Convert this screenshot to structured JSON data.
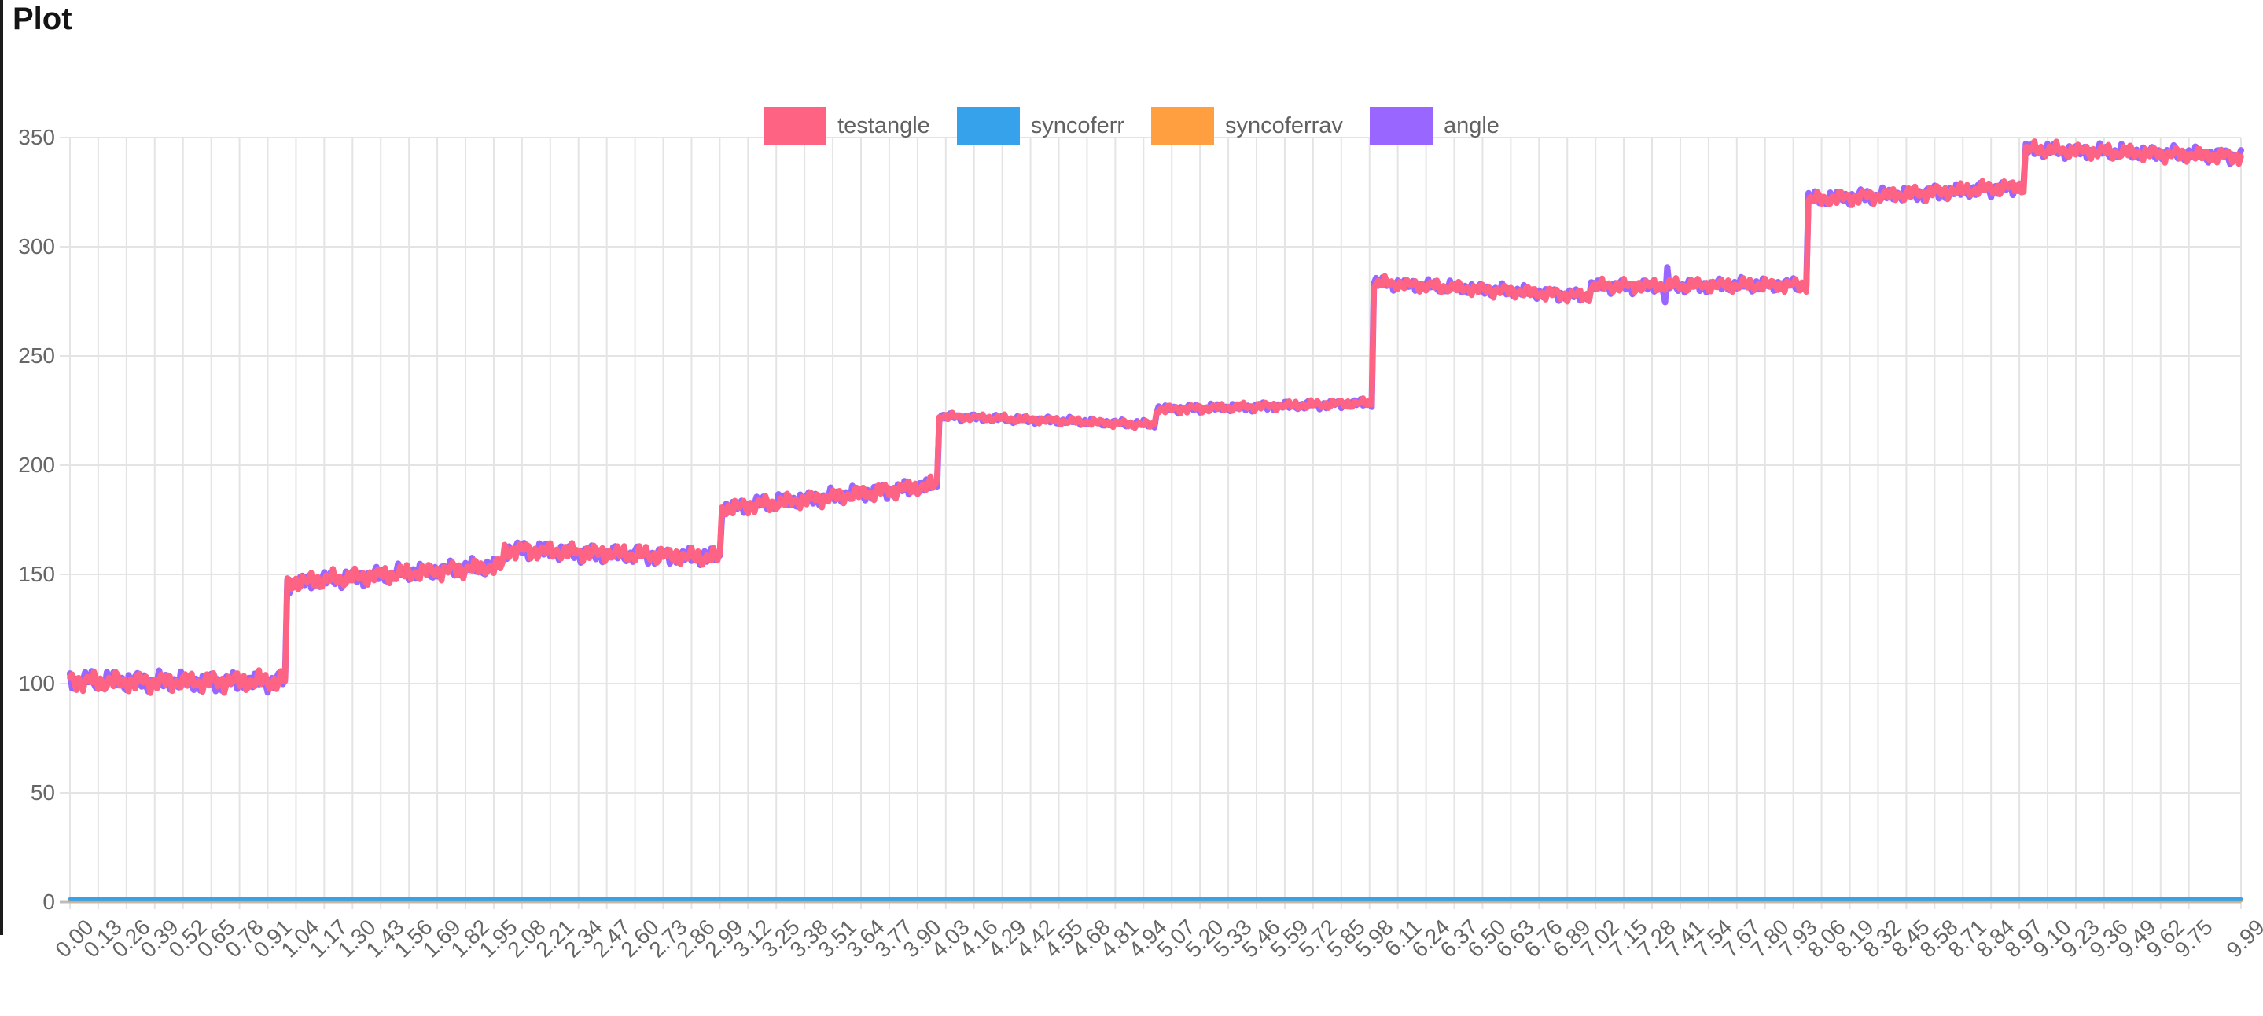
{
  "page": {
    "title": "Plot"
  },
  "chart_data": {
    "type": "line",
    "title": "Plot",
    "legend_position": "top-center",
    "grid": true,
    "x_index_range": [
      0,
      999
    ],
    "n_points": 1000,
    "ylim": [
      0,
      350
    ],
    "y_ticks": [
      0,
      50,
      100,
      150,
      200,
      250,
      300,
      350
    ],
    "x_tick_step_points": 13,
    "x_tick_labels": [
      "0.00",
      "0.13",
      "0.26",
      "0.39",
      "0.52",
      "0.65",
      "0.78",
      "0.91",
      "1.04",
      "1.17",
      "1.30",
      "1.43",
      "1.56",
      "1.69",
      "1.82",
      "1.95",
      "2.08",
      "2.21",
      "2.34",
      "2.47",
      "2.60",
      "2.73",
      "2.86",
      "2.99",
      "3.12",
      "3.25",
      "3.38",
      "3.51",
      "3.64",
      "3.77",
      "3.90",
      "4.03",
      "4.16",
      "4.29",
      "4.42",
      "4.55",
      "4.68",
      "4.81",
      "4.94",
      "5.07",
      "5.20",
      "5.33",
      "5.46",
      "5.59",
      "5.72",
      "5.85",
      "5.98",
      "6.11",
      "6.24",
      "6.37",
      "6.50",
      "6.63",
      "6.76",
      "6.89",
      "7.02",
      "7.15",
      "7.28",
      "7.41",
      "7.54",
      "7.67",
      "7.80",
      "7.93",
      "8.06",
      "8.19",
      "8.32",
      "8.45",
      "8.58",
      "8.71",
      "8.84",
      "8.97",
      "9.10",
      "9.23",
      "9.36",
      "9.49",
      "9.62",
      "9.75",
      "9.99"
    ],
    "series": [
      {
        "name": "testangle",
        "color": "#FF6384",
        "line_width": 7.5,
        "style": "stepped-noisy-line",
        "segments": [
          {
            "x0": 0,
            "x1": 99,
            "y0": 101,
            "y1": 101,
            "noise_amp": 3.2
          },
          {
            "x0": 100,
            "x1": 199,
            "y0": 146,
            "y1": 154,
            "noise_amp": 2.8
          },
          {
            "x0": 200,
            "x1": 299,
            "y0": 161.5,
            "y1": 157.5,
            "noise_amp": 2.8
          },
          {
            "x0": 300,
            "x1": 399,
            "y0": 180,
            "y1": 191,
            "noise_amp": 2.6
          },
          {
            "x0": 400,
            "x1": 499,
            "y0": 222.5,
            "y1": 218.5,
            "noise_amp": 1.2
          },
          {
            "x0": 500,
            "x1": 599,
            "y0": 225.5,
            "y1": 228.5,
            "noise_amp": 1.4
          },
          {
            "x0": 600,
            "x1": 699,
            "y0": 283.5,
            "y1": 277.5,
            "noise_amp": 2.0
          },
          {
            "x0": 700,
            "x1": 799,
            "y0": 282,
            "y1": 282.5,
            "noise_amp": 2.2
          },
          {
            "x0": 800,
            "x1": 899,
            "y0": 321.5,
            "y1": 327.5,
            "noise_amp": 2.4
          },
          {
            "x0": 900,
            "x1": 999,
            "y0": 344.5,
            "y1": 341.5,
            "noise_amp": 2.4
          }
        ]
      },
      {
        "name": "syncoferr",
        "color": "#36A2EB",
        "line_width": 5,
        "style": "flat-line",
        "constant": 1.3
      },
      {
        "name": "syncoferrav",
        "color": "#FF9F40",
        "line_width": 5,
        "style": "flat-line",
        "constant": 0.8
      },
      {
        "name": "angle",
        "color": "#9966FF",
        "line_width": 8,
        "style": "stepped-noisy-line",
        "same_segments_as": "testangle",
        "noise_phase_shift": 1.9,
        "anomalies": [
          {
            "x": 734,
            "dy": -9
          }
        ]
      }
    ]
  }
}
